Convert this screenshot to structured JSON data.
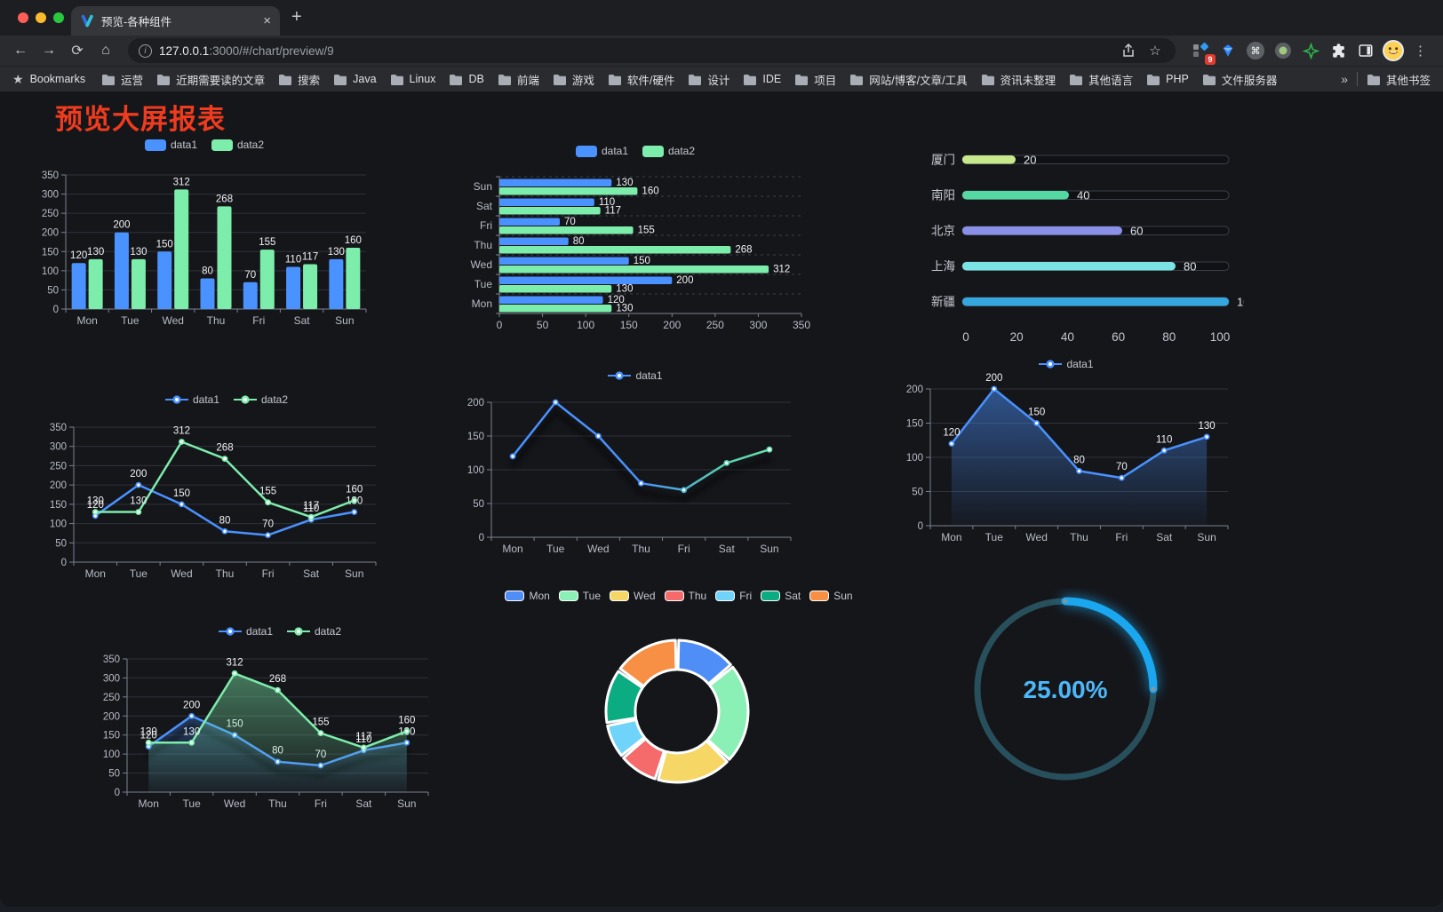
{
  "browser": {
    "traffic_lights": {
      "close": "#fb5f57",
      "minimize": "#fcbb2e",
      "maximize": "#2ac840"
    },
    "tab_title": "预览-各种组件",
    "icons": {
      "close": "×",
      "plus": "+",
      "back": "←",
      "forward": "→",
      "reload": "⟳",
      "home": "⌂",
      "info": "i",
      "bookmark_star": "☆",
      "menu": "⋮",
      "bookmarks_star": "★",
      "overflow": "»"
    },
    "url": {
      "host": "127.0.0.1",
      "rest": ":3000/#/chart/preview/9"
    },
    "extensions_badge": "9"
  },
  "bookmarks_bar": {
    "label": "Bookmarks",
    "folders": [
      "运营",
      "近期需要读的文章",
      "搜索",
      "Java",
      "Linux",
      "DB",
      "前端",
      "游戏",
      "软件/硬件",
      "设计",
      "IDE",
      "项目",
      "网站/博客/文章/工具",
      "资讯未整理",
      "其他语言",
      "PHP",
      "文件服务器"
    ],
    "other": "其他书签"
  },
  "page": {
    "title": "预览大屏报表",
    "title_color": "#ef3b1e"
  },
  "chart_data": [
    {
      "id": "bar-grouped",
      "type": "bar",
      "legend": [
        {
          "name": "data1",
          "color": "#4992ff"
        },
        {
          "name": "data2",
          "color": "#7dedab"
        }
      ],
      "categories": [
        "Mon",
        "Tue",
        "Wed",
        "Thu",
        "Fri",
        "Sat",
        "Sun"
      ],
      "series": [
        {
          "name": "data1",
          "color": "#4992ff",
          "values": [
            120,
            200,
            150,
            80,
            70,
            110,
            130
          ]
        },
        {
          "name": "data2",
          "color": "#7dedab",
          "values": [
            130,
            130,
            312,
            268,
            155,
            117,
            160
          ]
        }
      ],
      "ylim": [
        0,
        350
      ],
      "yticks": [
        0,
        50,
        100,
        150,
        200,
        250,
        300,
        350
      ],
      "grid": true
    },
    {
      "id": "bar-horizontal",
      "type": "hbar",
      "legend": [
        {
          "name": "data1",
          "color": "#4992ff"
        },
        {
          "name": "data2",
          "color": "#7dedab"
        }
      ],
      "categories": [
        "Mon",
        "Tue",
        "Wed",
        "Thu",
        "Fri",
        "Sat",
        "Sun"
      ],
      "display_order": "Sun-top",
      "series": [
        {
          "name": "data1",
          "color": "#4992ff",
          "values": [
            120,
            200,
            150,
            80,
            70,
            110,
            130
          ]
        },
        {
          "name": "data2",
          "color": "#7dedab",
          "values": [
            130,
            130,
            312,
            268,
            155,
            117,
            160
          ]
        }
      ],
      "xlim": [
        0,
        350
      ],
      "xticks": [
        0,
        50,
        100,
        150,
        200,
        250,
        300,
        350
      ]
    },
    {
      "id": "city-progress",
      "type": "progress",
      "rows": [
        {
          "label": "厦门",
          "value": 20,
          "color": "#c8e88c"
        },
        {
          "label": "南阳",
          "value": 40,
          "color": "#55d9a2"
        },
        {
          "label": "北京",
          "value": 60,
          "color": "#8a90e5"
        },
        {
          "label": "上海",
          "value": 80,
          "color": "#7ae3e3"
        },
        {
          "label": "新疆",
          "value": 100,
          "color": "#36a6de"
        }
      ],
      "xlim": [
        0,
        100
      ],
      "xticks": [
        0,
        20,
        40,
        60,
        80,
        100
      ]
    },
    {
      "id": "line-basic",
      "type": "line",
      "legend": [
        {
          "name": "data1",
          "color": "#4992ff"
        },
        {
          "name": "data2",
          "color": "#7dedab"
        }
      ],
      "categories": [
        "Mon",
        "Tue",
        "Wed",
        "Thu",
        "Fri",
        "Sat",
        "Sun"
      ],
      "series": [
        {
          "name": "data1",
          "color": "#4992ff",
          "values": [
            120,
            200,
            150,
            80,
            70,
            110,
            130
          ]
        },
        {
          "name": "data2",
          "color": "#7dedab",
          "values": [
            130,
            130,
            312,
            268,
            155,
            117,
            160
          ]
        }
      ],
      "ylim": [
        0,
        350
      ],
      "yticks": [
        0,
        50,
        100,
        150,
        200,
        250,
        300,
        350
      ],
      "point_labels": true
    },
    {
      "id": "line-gradient",
      "type": "line",
      "legend": [
        {
          "name": "data1",
          "color": "#4992ff"
        }
      ],
      "categories": [
        "Mon",
        "Tue",
        "Wed",
        "Thu",
        "Fri",
        "Sat",
        "Sun"
      ],
      "series": [
        {
          "name": "data1",
          "color": "#4992ff",
          "shadow": true,
          "gradient": [
            {
              "offset": 0,
              "color": "#4992ff"
            },
            {
              "offset": 0.5,
              "color": "#4992ff"
            },
            {
              "offset": 0.78,
              "color": "#55d3a6"
            },
            {
              "offset": 1,
              "color": "#70e7b5"
            }
          ],
          "values": [
            120,
            200,
            150,
            80,
            70,
            110,
            130
          ]
        }
      ],
      "ylim": [
        0,
        200
      ],
      "yticks": [
        0,
        50,
        100,
        150,
        200
      ],
      "point_labels": false
    },
    {
      "id": "area-basic",
      "type": "line",
      "legend": [
        {
          "name": "data1",
          "color": "#4992ff"
        }
      ],
      "categories": [
        "Mon",
        "Tue",
        "Wed",
        "Thu",
        "Fri",
        "Sat",
        "Sun"
      ],
      "series": [
        {
          "name": "data1",
          "color": "#4992ff",
          "area": true,
          "values": [
            120,
            200,
            150,
            80,
            70,
            110,
            130
          ]
        }
      ],
      "ylim": [
        0,
        200
      ],
      "yticks": [
        0,
        50,
        100,
        150,
        200
      ],
      "point_labels": true
    },
    {
      "id": "line-area",
      "type": "line",
      "legend": [
        {
          "name": "data1",
          "color": "#4992ff"
        },
        {
          "name": "data2",
          "color": "#7dedab"
        }
      ],
      "categories": [
        "Mon",
        "Tue",
        "Wed",
        "Thu",
        "Fri",
        "Sat",
        "Sun"
      ],
      "series": [
        {
          "name": "data1",
          "color": "#4992ff",
          "area": true,
          "shadow": true,
          "values": [
            120,
            200,
            150,
            80,
            70,
            110,
            130
          ]
        },
        {
          "name": "data2",
          "color": "#7dedab",
          "area": true,
          "values": [
            130,
            130,
            312,
            268,
            155,
            117,
            160
          ]
        }
      ],
      "ylim": [
        0,
        350
      ],
      "yticks": [
        0,
        50,
        100,
        150,
        200,
        250,
        300,
        350
      ],
      "point_labels": true
    },
    {
      "id": "weekday-donut",
      "type": "pie",
      "slices": [
        {
          "name": "Mon",
          "value": 120,
          "color": "#4f8ef7"
        },
        {
          "name": "Tue",
          "value": 200,
          "color": "#8bf0b5"
        },
        {
          "name": "Wed",
          "value": 150,
          "color": "#f6d664"
        },
        {
          "name": "Thu",
          "value": 80,
          "color": "#f56a6a"
        },
        {
          "name": "Fri",
          "value": 70,
          "color": "#70d3f9"
        },
        {
          "name": "Sat",
          "value": 110,
          "color": "#0cac82"
        },
        {
          "name": "Sun",
          "value": 130,
          "color": "#f78f45"
        }
      ]
    },
    {
      "id": "percent-gauge",
      "type": "gauge",
      "value": 25,
      "label": "25.00%",
      "color": "#1aa7f0",
      "track_color": "#27505c",
      "text_color": "#4db7f8"
    }
  ]
}
